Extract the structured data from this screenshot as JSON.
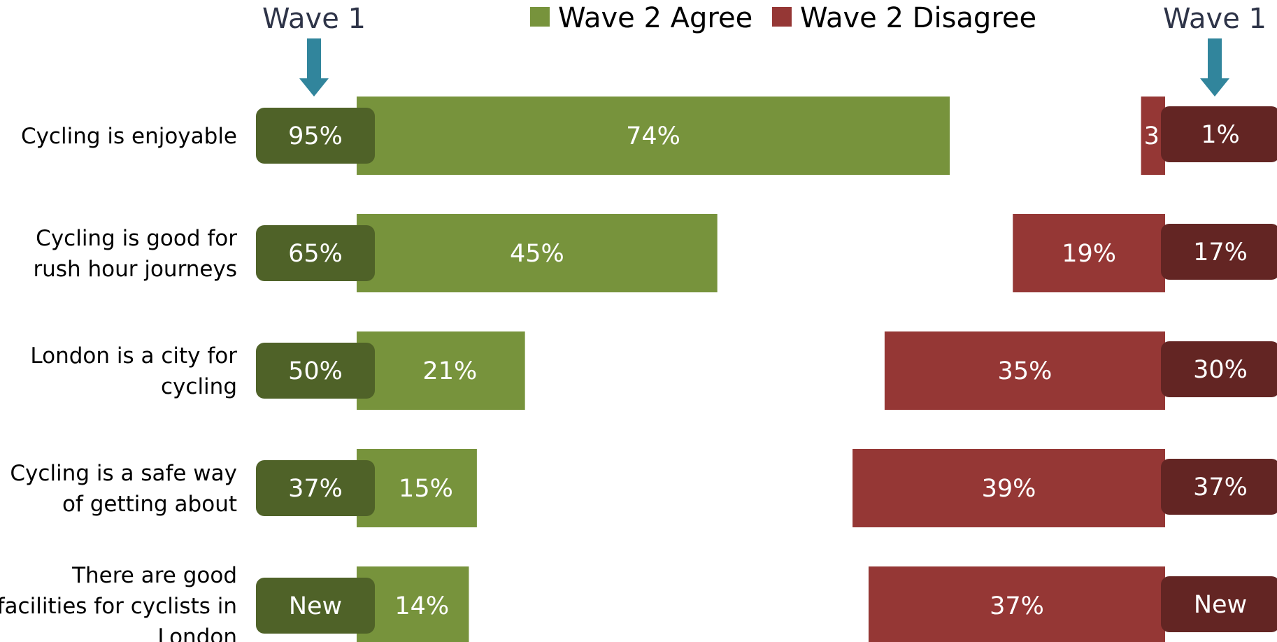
{
  "legend": [
    {
      "label": "Wave 2 Agree",
      "color": "#77933c"
    },
    {
      "label": "Wave 2 Disagree",
      "color": "#953735"
    }
  ],
  "wave_markers": {
    "left_label": "Wave 1",
    "right_label": "Wave 1",
    "arrow_color": "#31859c"
  },
  "colors": {
    "agree": "#77933c",
    "disagree": "#953735",
    "wave1_agree": "#4f6228",
    "wave1_disagree": "#632523"
  },
  "chart_data": {
    "type": "bar",
    "orientation": "horizontal",
    "categories": [
      [
        "Cycling is enjoyable"
      ],
      [
        "Cycling is good for",
        "rush hour journeys"
      ],
      [
        "London is a city for",
        "cycling"
      ],
      [
        "Cycling is a safe way",
        "of getting about"
      ],
      [
        "There are good",
        "facilities for cyclists in",
        "London"
      ]
    ],
    "series": [
      {
        "name": "Wave 2 Agree",
        "values": [
          74,
          45,
          21,
          15,
          14
        ],
        "labels": [
          "74%",
          "45%",
          "21%",
          "15%",
          "14%"
        ]
      },
      {
        "name": "Wave 2 Disagree",
        "values": [
          3,
          19,
          35,
          39,
          37
        ],
        "labels": [
          "3",
          "19%",
          "35%",
          "39%",
          "37%"
        ]
      }
    ],
    "wave1_agree": [
      "95%",
      "65%",
      "50%",
      "37%",
      "New"
    ],
    "wave1_disagree": [
      "1%",
      "17%",
      "30%",
      "37%",
      "New"
    ],
    "xlim": [
      0,
      100
    ]
  }
}
